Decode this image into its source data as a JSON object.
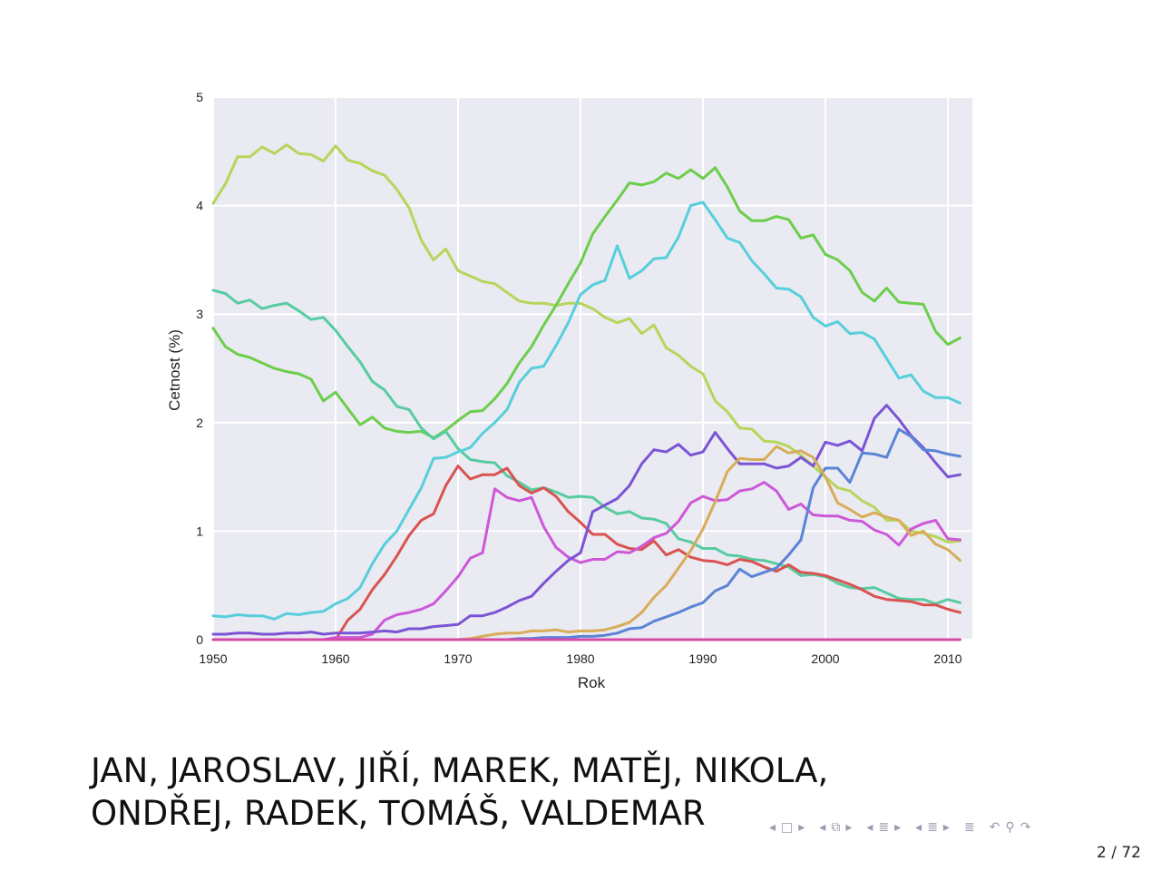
{
  "chart_data": {
    "type": "line",
    "xlabel": "Rok",
    "ylabel": "Cetnost (%)",
    "xlim": [
      1950,
      2012
    ],
    "ylim": [
      0,
      5
    ],
    "x_ticks": [
      1950,
      1960,
      1970,
      1980,
      1990,
      2000,
      2010
    ],
    "y_ticks": [
      0,
      1,
      2,
      3,
      4,
      5
    ],
    "grid": true,
    "background": "#eaeaf2",
    "x": [
      1950,
      1951,
      1952,
      1953,
      1954,
      1955,
      1956,
      1957,
      1958,
      1959,
      1960,
      1961,
      1962,
      1963,
      1964,
      1965,
      1966,
      1967,
      1968,
      1969,
      1970,
      1971,
      1972,
      1973,
      1974,
      1975,
      1976,
      1977,
      1978,
      1979,
      1980,
      1981,
      1982,
      1983,
      1984,
      1985,
      1986,
      1987,
      1988,
      1989,
      1990,
      1991,
      1992,
      1993,
      1994,
      1995,
      1996,
      1997,
      1998,
      1999,
      2000,
      2001,
      2002,
      2003,
      2004,
      2005,
      2006,
      2007,
      2008,
      2009,
      2010,
      2011
    ],
    "series": [
      {
        "color": "#b5d65a",
        "values": [
          4.02,
          4.2,
          4.45,
          4.45,
          4.54,
          4.48,
          4.56,
          4.48,
          4.47,
          4.41,
          4.55,
          4.42,
          4.39,
          4.32,
          4.28,
          4.15,
          3.98,
          3.68,
          3.5,
          3.6,
          3.4,
          3.35,
          3.3,
          3.28,
          3.2,
          3.12,
          3.1,
          3.1,
          3.08,
          3.1,
          3.1,
          3.05,
          2.97,
          2.92,
          2.96,
          2.82,
          2.9,
          2.69,
          2.62,
          2.52,
          2.45,
          2.2,
          2.1,
          1.95,
          1.94,
          1.83,
          1.82,
          1.78,
          1.7,
          1.6,
          1.5,
          1.4,
          1.37,
          1.28,
          1.22,
          1.1,
          1.1,
          1.0,
          0.98,
          0.95,
          0.9,
          0.91
        ]
      },
      {
        "color": "#6cce4c",
        "values": [
          2.87,
          2.7,
          2.63,
          2.6,
          2.55,
          2.5,
          2.47,
          2.45,
          2.4,
          2.2,
          2.28,
          2.13,
          1.98,
          2.05,
          1.95,
          1.92,
          1.91,
          1.92,
          1.86,
          1.93,
          2.02,
          2.1,
          2.11,
          2.22,
          2.36,
          2.55,
          2.7,
          2.9,
          3.08,
          3.28,
          3.47,
          3.74,
          3.9,
          4.05,
          4.21,
          4.19,
          4.22,
          4.3,
          4.25,
          4.33,
          4.25,
          4.35,
          4.17,
          3.95,
          3.86,
          3.86,
          3.9,
          3.87,
          3.7,
          3.73,
          3.55,
          3.5,
          3.4,
          3.2,
          3.12,
          3.24,
          3.11,
          3.1,
          3.09,
          2.84,
          2.72,
          2.78
        ]
      },
      {
        "color": "#56cca0",
        "values": [
          3.22,
          3.19,
          3.1,
          3.13,
          3.05,
          3.08,
          3.1,
          3.03,
          2.95,
          2.97,
          2.85,
          2.7,
          2.56,
          2.38,
          2.3,
          2.15,
          2.12,
          1.95,
          1.85,
          1.92,
          1.76,
          1.66,
          1.64,
          1.63,
          1.51,
          1.45,
          1.38,
          1.4,
          1.36,
          1.31,
          1.32,
          1.31,
          1.22,
          1.16,
          1.18,
          1.12,
          1.11,
          1.07,
          0.93,
          0.9,
          0.84,
          0.84,
          0.78,
          0.77,
          0.74,
          0.73,
          0.7,
          0.67,
          0.59,
          0.6,
          0.58,
          0.52,
          0.48,
          0.47,
          0.48,
          0.43,
          0.38,
          0.37,
          0.37,
          0.33,
          0.37,
          0.34
        ]
      },
      {
        "color": "#57cfdb",
        "values": [
          0.22,
          0.21,
          0.23,
          0.22,
          0.22,
          0.19,
          0.24,
          0.23,
          0.25,
          0.26,
          0.33,
          0.38,
          0.48,
          0.7,
          0.88,
          1.0,
          1.2,
          1.4,
          1.67,
          1.68,
          1.73,
          1.77,
          1.9,
          2.0,
          2.12,
          2.37,
          2.5,
          2.52,
          2.71,
          2.92,
          3.18,
          3.27,
          3.31,
          3.63,
          3.33,
          3.4,
          3.51,
          3.52,
          3.71,
          4.0,
          4.03,
          3.87,
          3.7,
          3.66,
          3.49,
          3.37,
          3.24,
          3.23,
          3.16,
          2.97,
          2.89,
          2.93,
          2.82,
          2.83,
          2.77,
          2.59,
          2.41,
          2.44,
          2.29,
          2.23,
          2.23,
          2.18
        ]
      },
      {
        "color": "#d95350",
        "values": [
          0.0,
          0.0,
          0.0,
          0.0,
          0.0,
          0.0,
          0.0,
          0.0,
          0.0,
          0.0,
          0.0,
          0.18,
          0.28,
          0.46,
          0.6,
          0.77,
          0.96,
          1.1,
          1.16,
          1.42,
          1.6,
          1.48,
          1.52,
          1.52,
          1.58,
          1.42,
          1.35,
          1.4,
          1.32,
          1.18,
          1.08,
          0.97,
          0.97,
          0.88,
          0.84,
          0.83,
          0.91,
          0.78,
          0.83,
          0.76,
          0.73,
          0.72,
          0.69,
          0.74,
          0.72,
          0.67,
          0.63,
          0.69,
          0.62,
          0.61,
          0.59,
          0.55,
          0.51,
          0.46,
          0.4,
          0.37,
          0.36,
          0.35,
          0.32,
          0.32,
          0.28,
          0.25
        ]
      },
      {
        "color": "#cd58d8",
        "values": [
          0.0,
          0.0,
          0.0,
          0.0,
          0.0,
          0.0,
          0.0,
          0.0,
          0.0,
          0.0,
          0.02,
          0.02,
          0.02,
          0.05,
          0.18,
          0.23,
          0.25,
          0.28,
          0.33,
          0.45,
          0.58,
          0.75,
          0.8,
          1.39,
          1.31,
          1.28,
          1.31,
          1.04,
          0.85,
          0.76,
          0.71,
          0.74,
          0.74,
          0.81,
          0.8,
          0.86,
          0.94,
          0.98,
          1.09,
          1.26,
          1.32,
          1.28,
          1.29,
          1.37,
          1.39,
          1.45,
          1.37,
          1.2,
          1.25,
          1.15,
          1.14,
          1.14,
          1.1,
          1.09,
          1.01,
          0.97,
          0.87,
          1.02,
          1.07,
          1.1,
          0.93,
          0.92
        ]
      },
      {
        "color": "#7b54d4",
        "values": [
          0.05,
          0.05,
          0.06,
          0.06,
          0.05,
          0.05,
          0.06,
          0.06,
          0.07,
          0.05,
          0.06,
          0.06,
          0.06,
          0.07,
          0.08,
          0.07,
          0.1,
          0.1,
          0.12,
          0.13,
          0.14,
          0.22,
          0.22,
          0.25,
          0.3,
          0.36,
          0.4,
          0.52,
          0.63,
          0.73,
          0.8,
          1.18,
          1.24,
          1.3,
          1.42,
          1.62,
          1.75,
          1.73,
          1.8,
          1.7,
          1.73,
          1.91,
          1.76,
          1.62,
          1.62,
          1.62,
          1.58,
          1.6,
          1.68,
          1.6,
          1.82,
          1.79,
          1.83,
          1.74,
          2.04,
          2.16,
          2.03,
          1.88,
          1.77,
          1.63,
          1.5,
          1.52
        ]
      },
      {
        "color": "#5a84d6",
        "values": [
          0.0,
          0.0,
          0.0,
          0.0,
          0.0,
          0.0,
          0.0,
          0.0,
          0.0,
          0.0,
          0.0,
          0.0,
          0.0,
          0.0,
          0.0,
          0.0,
          0.0,
          0.0,
          0.0,
          0.0,
          0.0,
          0.0,
          0.0,
          0.0,
          0.0,
          0.01,
          0.01,
          0.02,
          0.02,
          0.02,
          0.03,
          0.03,
          0.04,
          0.06,
          0.1,
          0.11,
          0.17,
          0.21,
          0.25,
          0.3,
          0.34,
          0.45,
          0.5,
          0.65,
          0.58,
          0.62,
          0.66,
          0.78,
          0.92,
          1.4,
          1.58,
          1.58,
          1.45,
          1.72,
          1.71,
          1.68,
          1.94,
          1.87,
          1.75,
          1.74,
          1.71,
          1.69
        ]
      },
      {
        "color": "#d8ac58",
        "values": [
          0.0,
          0.0,
          0.0,
          0.0,
          0.0,
          0.0,
          0.0,
          0.0,
          0.0,
          0.0,
          0.0,
          0.0,
          0.0,
          0.0,
          0.0,
          0.0,
          0.0,
          0.0,
          0.0,
          0.0,
          0.0,
          0.01,
          0.03,
          0.05,
          0.06,
          0.06,
          0.08,
          0.08,
          0.09,
          0.07,
          0.08,
          0.08,
          0.09,
          0.12,
          0.16,
          0.25,
          0.39,
          0.5,
          0.66,
          0.82,
          1.02,
          1.27,
          1.55,
          1.67,
          1.66,
          1.66,
          1.78,
          1.72,
          1.74,
          1.68,
          1.5,
          1.26,
          1.2,
          1.13,
          1.17,
          1.13,
          1.1,
          0.96,
          1.0,
          0.88,
          0.83,
          0.73
        ]
      },
      {
        "color": "#d44aa6",
        "values": [
          0.0,
          0.0,
          0.0,
          0.0,
          0.0,
          0.0,
          0.0,
          0.0,
          0.0,
          0.0,
          0.0,
          0.0,
          0.0,
          0.0,
          0.0,
          0.0,
          0.0,
          0.0,
          0.0,
          0.0,
          0.0,
          0.0,
          0.0,
          0.0,
          0.0,
          0.0,
          0.0,
          0.0,
          0.0,
          0.0,
          0.0,
          0.0,
          0.0,
          0.0,
          0.0,
          0.0,
          0.0,
          0.0,
          0.0,
          0.0,
          0.0,
          0.0,
          0.0,
          0.0,
          0.0,
          0.0,
          0.0,
          0.0,
          0.0,
          0.0,
          0.0,
          0.0,
          0.0,
          0.0,
          0.0,
          0.0,
          0.0,
          0.0,
          0.0,
          0.0,
          0.0,
          0.0
        ]
      }
    ]
  },
  "caption": {
    "line1": "JAN, JAROSLAV, JIŘÍ, MAREK, MATĚJ, NIKOLA,",
    "line2": "ONDŘEJ, RADEK, TOMÁŠ, VALDEMAR"
  },
  "nav": {
    "prev_frame": "◂",
    "frame_box": "□",
    "next_frame": "▸",
    "prev_subsection": "◂",
    "subsection_icon": "⧉",
    "next_subsection": "▸",
    "prev_section": "◂",
    "section_icon": "≣",
    "next_section": "▸",
    "prev_appendix": "◂",
    "appendix_icon": "≣",
    "next_appendix": "▸",
    "toc_icon": "≣",
    "undo_icon": "↶",
    "search_icon": "⚲",
    "redo_icon": "↷"
  },
  "page": "2 / 72"
}
